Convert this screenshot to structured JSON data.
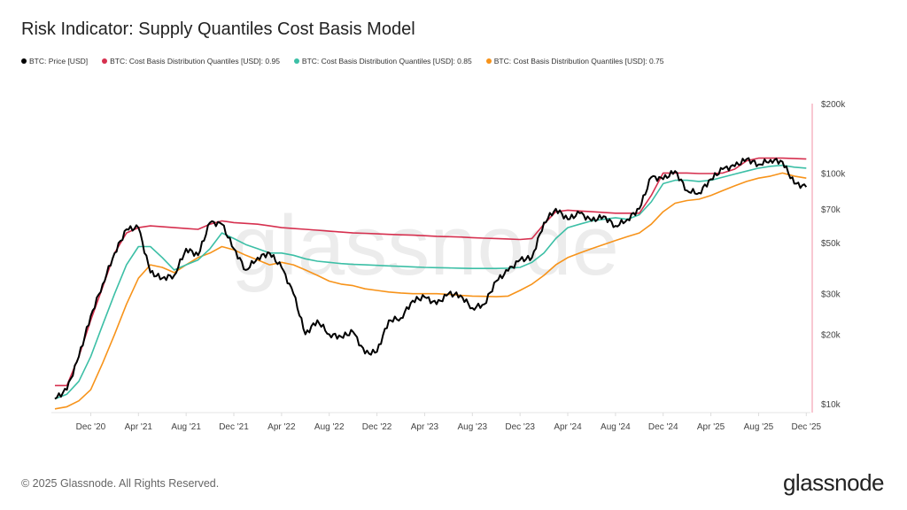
{
  "chart_data": {
    "type": "line",
    "title": "Risk Indicator: Supply Quantiles Cost Basis Model",
    "y_scale": "log",
    "ylim": [
      10000,
      200000
    ],
    "yticks": [
      {
        "v": 10000,
        "label": "$10k"
      },
      {
        "v": 20000,
        "label": "$20k"
      },
      {
        "v": 30000,
        "label": "$30k"
      },
      {
        "v": 50000,
        "label": "$50k"
      },
      {
        "v": 70000,
        "label": "$70k"
      },
      {
        "v": 100000,
        "label": "$100k"
      },
      {
        "v": 200000,
        "label": "$200k"
      }
    ],
    "xlim": [
      "2020-08",
      "2025-12"
    ],
    "xticks": [
      {
        "d": "2020-12",
        "label": "Dec '20"
      },
      {
        "d": "2021-04",
        "label": "Apr '21"
      },
      {
        "d": "2021-08",
        "label": "Aug '21"
      },
      {
        "d": "2021-12",
        "label": "Dec '21"
      },
      {
        "d": "2022-04",
        "label": "Apr '22"
      },
      {
        "d": "2022-08",
        "label": "Aug '22"
      },
      {
        "d": "2022-12",
        "label": "Dec '22"
      },
      {
        "d": "2023-04",
        "label": "Apr '23"
      },
      {
        "d": "2023-08",
        "label": "Aug '23"
      },
      {
        "d": "2023-12",
        "label": "Dec '23"
      },
      {
        "d": "2024-04",
        "label": "Apr '24"
      },
      {
        "d": "2024-08",
        "label": "Aug '24"
      },
      {
        "d": "2024-12",
        "label": "Dec '24"
      },
      {
        "d": "2025-04",
        "label": "Apr '25"
      },
      {
        "d": "2025-08",
        "label": "Aug '25"
      },
      {
        "d": "2025-12",
        "label": "Dec '25"
      }
    ],
    "grid": false,
    "legend_position": "top-left",
    "x": [
      "2020-09",
      "2020-10",
      "2020-11",
      "2020-12",
      "2021-01",
      "2021-02",
      "2021-03",
      "2021-04",
      "2021-05",
      "2021-06",
      "2021-07",
      "2021-08",
      "2021-09",
      "2021-10",
      "2021-11",
      "2021-12",
      "2022-01",
      "2022-02",
      "2022-03",
      "2022-04",
      "2022-05",
      "2022-06",
      "2022-07",
      "2022-08",
      "2022-09",
      "2022-10",
      "2022-11",
      "2022-12",
      "2023-01",
      "2023-02",
      "2023-03",
      "2023-04",
      "2023-05",
      "2023-06",
      "2023-07",
      "2023-08",
      "2023-09",
      "2023-10",
      "2023-11",
      "2023-12",
      "2024-01",
      "2024-02",
      "2024-03",
      "2024-04",
      "2024-05",
      "2024-06",
      "2024-07",
      "2024-08",
      "2024-09",
      "2024-10",
      "2024-11",
      "2024-12",
      "2025-01",
      "2025-02",
      "2025-03",
      "2025-04",
      "2025-05",
      "2025-06",
      "2025-07",
      "2025-08",
      "2025-09",
      "2025-10",
      "2025-11",
      "2025-12"
    ],
    "series": [
      {
        "name": "BTC: Price [USD]",
        "color": "#000000",
        "values": [
          10500,
          11500,
          16000,
          24000,
          33000,
          45000,
          57000,
          58000,
          37000,
          35000,
          36000,
          47000,
          44000,
          61000,
          60000,
          47000,
          38000,
          43000,
          45000,
          39000,
          30000,
          20000,
          23000,
          20000,
          19500,
          20500,
          16500,
          16800,
          23000,
          23500,
          28000,
          29000,
          27000,
          30000,
          29500,
          26000,
          27000,
          34000,
          37700,
          42000,
          43000,
          61000,
          70000,
          63000,
          67000,
          62000,
          65000,
          59000,
          63000,
          70000,
          96000,
          94000,
          102000,
          84000,
          82000,
          94000,
          104000,
          107000,
          115000,
          109000,
          114000,
          112000,
          90000,
          87000
        ]
      },
      {
        "name": "BTC: Cost Basis Distribution Quantiles [USD]: 0.95",
        "color": "#d6304f",
        "values": [
          12000,
          12000,
          16000,
          23000,
          32000,
          45000,
          55000,
          58000,
          59000,
          58500,
          58000,
          57500,
          57000,
          60000,
          62000,
          61000,
          60500,
          60000,
          59000,
          58000,
          57500,
          57000,
          56500,
          56000,
          55500,
          55000,
          54800,
          54500,
          54200,
          54000,
          53800,
          53500,
          53200,
          53000,
          52800,
          52500,
          52200,
          52000,
          51800,
          51500,
          52000,
          60000,
          68000,
          69000,
          68500,
          68000,
          67500,
          67000,
          67000,
          67000,
          80000,
          100000,
          100000,
          100000,
          99500,
          99500,
          100000,
          104000,
          113000,
          116000,
          116000,
          116000,
          115500,
          115000
        ]
      },
      {
        "name": "BTC: Cost Basis Distribution Quantiles [USD]: 0.85",
        "color": "#3cbfa6",
        "values": [
          10500,
          11000,
          12500,
          16000,
          22000,
          30000,
          40000,
          48000,
          48000,
          43000,
          38000,
          40000,
          42000,
          47000,
          55000,
          52000,
          49000,
          47000,
          45000,
          45000,
          44000,
          42500,
          41500,
          41000,
          40500,
          40200,
          40000,
          39800,
          39600,
          39400,
          39200,
          39000,
          38900,
          38800,
          38700,
          38600,
          38600,
          38600,
          38700,
          39000,
          41000,
          45000,
          52000,
          58000,
          60000,
          62000,
          63000,
          64000,
          63000,
          66000,
          75000,
          90000,
          93000,
          93000,
          92000,
          93000,
          96000,
          99000,
          102000,
          105000,
          107000,
          108000,
          106000,
          105000
        ]
      },
      {
        "name": "BTC: Cost Basis Distribution Quantiles [USD]: 0.75",
        "color": "#f7931a",
        "values": [
          9500,
          9700,
          10300,
          11500,
          15000,
          20000,
          27000,
          35000,
          40000,
          39000,
          37000,
          40000,
          43000,
          45000,
          48000,
          46500,
          44000,
          42000,
          40000,
          41000,
          40000,
          38000,
          36000,
          34000,
          33000,
          32500,
          31500,
          31000,
          30500,
          30200,
          30000,
          30000,
          30000,
          29800,
          29500,
          29300,
          29200,
          29100,
          29300,
          31000,
          33000,
          36000,
          40000,
          43000,
          45000,
          47000,
          49000,
          51000,
          53000,
          55000,
          60000,
          68000,
          74000,
          76000,
          77000,
          80000,
          84000,
          88000,
          92000,
          95000,
          97000,
          100000,
          97000,
          95000
        ]
      }
    ]
  },
  "legend": [
    "BTC: Price [USD]",
    "BTC: Cost Basis Distribution Quantiles [USD]: 0.95",
    "BTC: Cost Basis Distribution Quantiles [USD]: 0.85",
    "BTC: Cost Basis Distribution Quantiles [USD]: 0.75"
  ],
  "watermark": "glassnode",
  "footer": {
    "copyright": "© 2025 Glassnode. All Rights Reserved.",
    "logo": "glassnode"
  }
}
